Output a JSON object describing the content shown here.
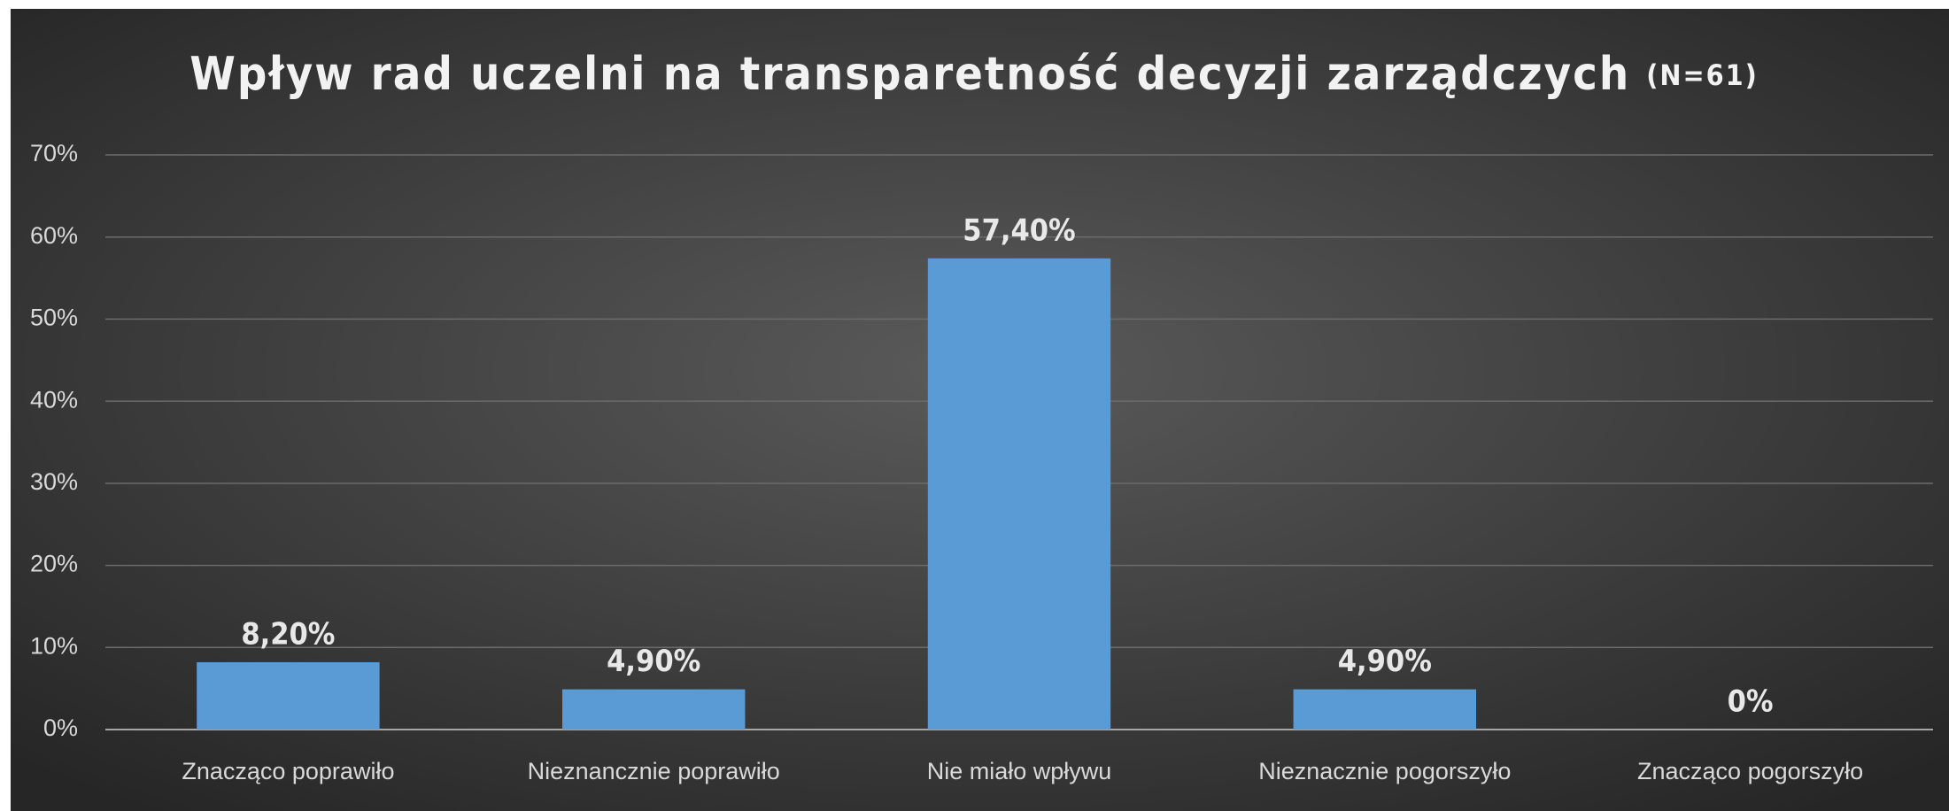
{
  "chart_data": {
    "type": "bar",
    "title": "Wpływ rad uczelni na transparetność decyzji zarządczych",
    "subtitle": "(N=61)",
    "categories": [
      "Znacząco poprawiło",
      "Nieznancznie poprawiło",
      "Nie miało wpływu",
      "Nieznacznie pogorszyło",
      "Znacząco pogorszyło"
    ],
    "values": [
      8.2,
      4.9,
      57.4,
      4.9,
      0
    ],
    "value_labels": [
      "8,20%",
      "4,90%",
      "57,40%",
      "4,90%",
      "0%"
    ],
    "color": "#5b9bd5",
    "ylim": [
      0,
      70
    ],
    "yticks": [
      {
        "value": 0,
        "label": "0%"
      },
      {
        "value": 10,
        "label": "10%"
      },
      {
        "value": 20,
        "label": "20%"
      },
      {
        "value": 30,
        "label": "30%"
      },
      {
        "value": 40,
        "label": "40%"
      },
      {
        "value": 50,
        "label": "50%"
      },
      {
        "value": 60,
        "label": "60%"
      },
      {
        "value": 70,
        "label": "70%"
      }
    ],
    "grid": true
  }
}
